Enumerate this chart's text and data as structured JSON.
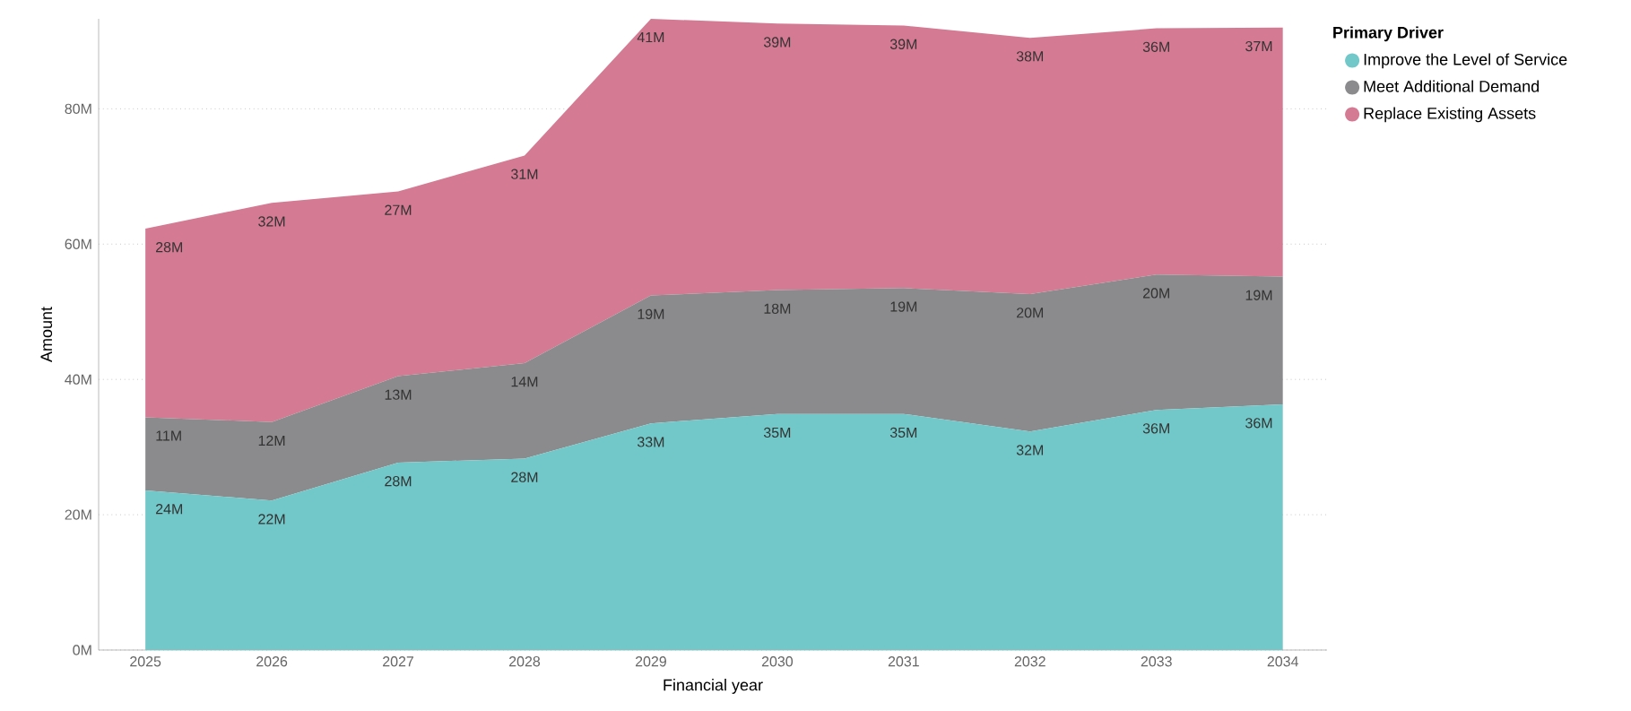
{
  "chart_data": {
    "type": "area",
    "stacked": true,
    "xlabel": "Financial year",
    "ylabel": "Amount",
    "legend_title": "Primary Driver",
    "legend": "top right",
    "grid": "y",
    "ylim": [
      0,
      93.3
    ],
    "categories": [
      "2025",
      "2026",
      "2027",
      "2028",
      "2029",
      "2030",
      "2031",
      "2032",
      "2033",
      "2034"
    ],
    "yticks": [
      {
        "value": 0,
        "label": "0M"
      },
      {
        "value": 20,
        "label": "20M"
      },
      {
        "value": 40,
        "label": "40M"
      },
      {
        "value": 60,
        "label": "60M"
      },
      {
        "value": 80,
        "label": "80M"
      }
    ],
    "series": [
      {
        "name": "Improve the Level of Service",
        "color": "#72c7c8",
        "values": [
          23.6,
          22.1,
          27.7,
          28.3,
          33.5,
          34.9,
          34.9,
          32.3,
          35.5,
          36.3
        ],
        "value_labels": [
          "24M",
          "22M",
          "28M",
          "28M",
          "33M",
          "35M",
          "35M",
          "32M",
          "36M",
          "36M"
        ]
      },
      {
        "name": "Meet Additional Demand",
        "color": "#8b8a8d",
        "values": [
          10.8,
          11.6,
          12.8,
          14.1,
          18.9,
          18.3,
          18.6,
          20.3,
          20.0,
          18.9
        ],
        "value_labels": [
          "11M",
          "12M",
          "13M",
          "14M",
          "19M",
          "18M",
          "19M",
          "20M",
          "20M",
          "19M"
        ]
      },
      {
        "name": "Replace Existing Assets",
        "color": "#d47a93",
        "values": [
          27.9,
          32.4,
          27.3,
          30.7,
          40.9,
          39.4,
          38.8,
          37.9,
          36.4,
          36.8
        ],
        "value_labels": [
          "28M",
          "32M",
          "27M",
          "31M",
          "41M",
          "39M",
          "39M",
          "38M",
          "36M",
          "37M"
        ]
      }
    ]
  }
}
